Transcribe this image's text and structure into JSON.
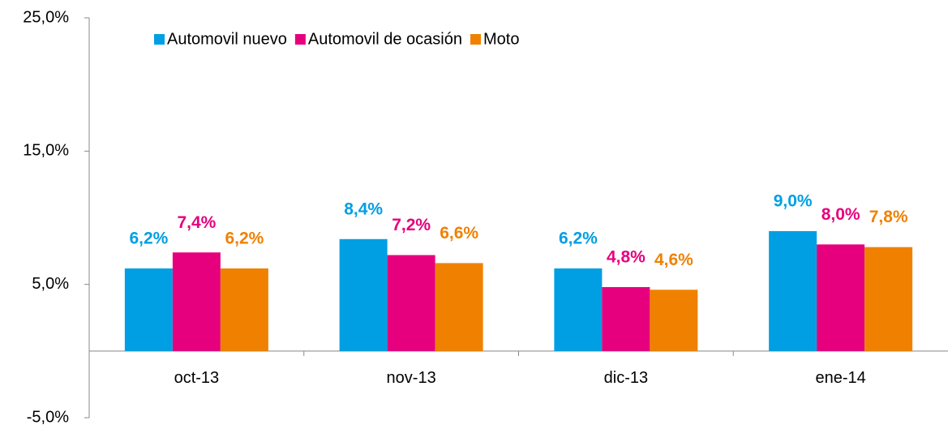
{
  "chart_data": {
    "type": "bar",
    "categories": [
      "oct-13",
      "nov-13",
      "dic-13",
      "ene-14"
    ],
    "series": [
      {
        "name": "Automovil nuevo",
        "color": "#009fe3",
        "values": [
          6.2,
          8.4,
          6.2,
          9.0
        ],
        "value_labels": [
          "6,2%",
          "8,4%",
          "6,2%",
          "9,0%"
        ]
      },
      {
        "name": "Automovil de ocasión",
        "color": "#e6007e",
        "values": [
          7.4,
          7.2,
          4.8,
          8.0
        ],
        "value_labels": [
          "7,4%",
          "7,2%",
          "4,8%",
          "8,0%"
        ]
      },
      {
        "name": "Moto",
        "color": "#f08100",
        "values": [
          6.2,
          6.6,
          4.6,
          7.8
        ],
        "value_labels": [
          "6,2%",
          "6,6%",
          "4,6%",
          "7,8%"
        ]
      }
    ],
    "ylim": [
      -5,
      25
    ],
    "yticks": [
      {
        "value": -5,
        "label": "-5,0%"
      },
      {
        "value": 5,
        "label": "5,0%"
      },
      {
        "value": 15,
        "label": "15,0%"
      },
      {
        "value": 25,
        "label": "25,0%"
      }
    ],
    "legend": "top"
  }
}
